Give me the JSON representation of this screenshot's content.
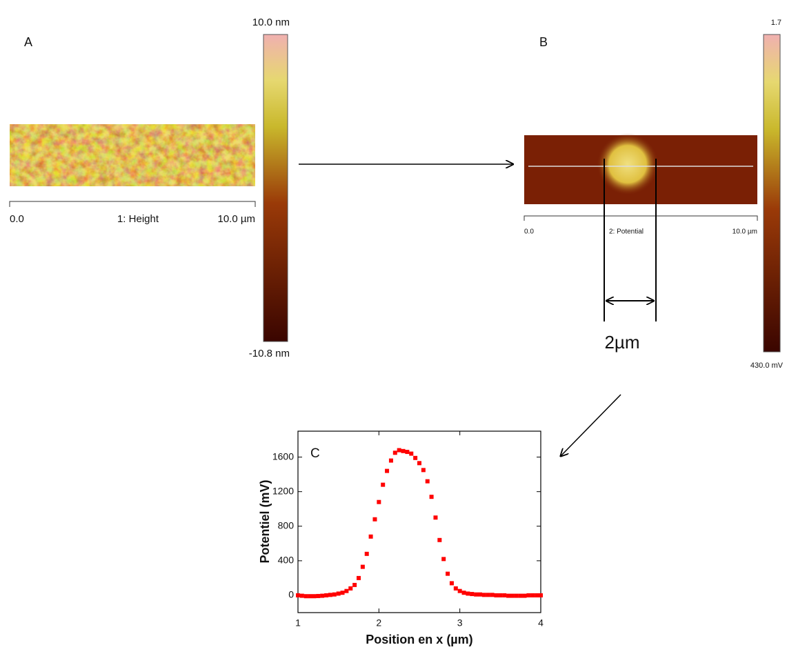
{
  "panel_a": {
    "label": "A",
    "scale_max": "10.0 nm",
    "scale_min": "-10.8 nm",
    "axis_start": "0.0",
    "channel": "1: Height",
    "axis_end": "10.0 µm"
  },
  "panel_b": {
    "label": "B",
    "scale_max": "1.7",
    "scale_min": "430.0 mV",
    "axis_start": "0.0",
    "channel": "2: Potential",
    "axis_end": "10.0 µm",
    "dimension": "2µm"
  },
  "chart_data": {
    "type": "scatter",
    "label": "C",
    "x_label": "Position en x (µm)",
    "y_label": "Potentiel (mV)",
    "x": [
      1.0,
      1.05,
      1.1,
      1.15,
      1.2,
      1.25,
      1.3,
      1.35,
      1.4,
      1.45,
      1.5,
      1.55,
      1.6,
      1.65,
      1.7,
      1.75,
      1.8,
      1.85,
      1.9,
      1.95,
      2.0,
      2.05,
      2.1,
      2.15,
      2.2,
      2.25,
      2.3,
      2.35,
      2.4,
      2.45,
      2.5,
      2.55,
      2.6,
      2.65,
      2.7,
      2.75,
      2.8,
      2.85,
      2.9,
      2.95,
      3.0,
      3.05,
      3.1,
      3.15,
      3.2,
      3.25,
      3.3,
      3.35,
      3.4,
      3.45,
      3.5,
      3.55,
      3.6,
      3.65,
      3.7,
      3.75,
      3.8,
      3.85,
      3.9,
      3.95,
      4.0
    ],
    "values": [
      0,
      -5,
      -10,
      -10,
      -10,
      -8,
      -5,
      0,
      5,
      10,
      20,
      30,
      50,
      80,
      120,
      200,
      330,
      480,
      680,
      880,
      1080,
      1280,
      1440,
      1560,
      1650,
      1680,
      1670,
      1660,
      1640,
      1590,
      1530,
      1450,
      1320,
      1140,
      900,
      640,
      420,
      250,
      140,
      80,
      50,
      30,
      20,
      15,
      10,
      10,
      5,
      5,
      5,
      0,
      0,
      0,
      -5,
      -5,
      -5,
      -5,
      -5,
      0,
      0,
      0,
      0
    ],
    "color": "#ff0000",
    "xlim": [
      1,
      4
    ],
    "xticks": [
      1,
      2,
      3,
      4
    ],
    "ylim": [
      -200,
      1900
    ],
    "yticks": [
      0,
      400,
      800,
      1200,
      1600
    ]
  }
}
